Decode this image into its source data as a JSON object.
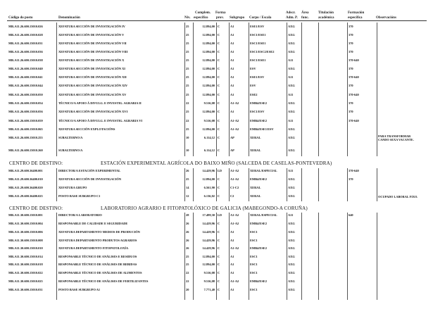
{
  "headers": {
    "codigo": "Código do posto",
    "denominacion": "Denominación",
    "nivel": "Niv.",
    "complem": "Complem.",
    "complem2": "específico",
    "forma": "Forma",
    "forma2": "prov.",
    "subgrupo": "Subgrupo",
    "corpo": "Corpo / Escala",
    "adscr": "Adscr.",
    "adscr2": "Adm. P.",
    "area": "Área",
    "area2": "func.",
    "titulacion": "Titulación",
    "titulacion2": "académica",
    "formacion": "Formación",
    "formacion2": "específica",
    "observacions": "Observacións"
  },
  "sections": [
    {
      "centro_label": "",
      "centro_name": "",
      "rows": [
        {
          "code": "MR.A11.26.600.15010.026",
          "name": "XEFATURA SECCIÓN DE INVESTIGACIÓN IV",
          "nivel": "25",
          "complem": "12.894,00",
          "forma": "C",
          "subgrupo": "A1",
          "corpo": "ESE1/ESV",
          "adscr": "AXG",
          "area": "",
          "titulacion": "",
          "formacion": "370",
          "obs": ""
        },
        {
          "code": "MR.A11.26.600.15010.028",
          "name": "XEFATURA SECCIÓN DE INVESTIGACIÓN V",
          "nivel": "25",
          "complem": "12.894,00",
          "forma": "C",
          "subgrupo": "A1",
          "corpo": "ESC1/ESE1",
          "adscr": "AXG",
          "area": "",
          "titulacion": "",
          "formacion": "370",
          "obs": ""
        },
        {
          "code": "MR.A11.26.600.15010.031",
          "name": "XEFATURA SECCIÓN DE INVESTIGACIÓN VII",
          "nivel": "25",
          "complem": "12.894,00",
          "forma": "C",
          "subgrupo": "A1",
          "corpo": "ESC1/ESE1",
          "adscr": "AXG",
          "area": "",
          "titulacion": "",
          "formacion": "370",
          "obs": ""
        },
        {
          "code": "MR.A11.26.600.15010.036",
          "name": "XEFATURA SECCIÓN DE INVESTIGACIÓN VIII",
          "nivel": "25",
          "complem": "12.894,00",
          "forma": "C",
          "subgrupo": "A1",
          "corpo": "ESC1/ESC2/ESE2",
          "adscr": "AXG",
          "area": "",
          "titulacion": "",
          "formacion": "370",
          "obs": ""
        },
        {
          "code": "MR.A11.26.600.15010.038",
          "name": "XEFATURA SECCIÓN DE INVESTIGACIÓN X",
          "nivel": "25",
          "complem": "12.894,00",
          "forma": "C",
          "subgrupo": "A1",
          "corpo": "ESC1/ESE1",
          "adscr": "A11",
          "area": "",
          "titulacion": "",
          "formacion": "370-640",
          "obs": ""
        },
        {
          "code": "MR.A11.26.600.15010.040",
          "name": "XEFATURA SECCIÓN DE INVESTIGACIÓN XI",
          "nivel": "25",
          "complem": "12.894,00",
          "forma": "C",
          "subgrupo": "A1",
          "corpo": "ESV",
          "adscr": "AXG",
          "area": "",
          "titulacion": "",
          "formacion": "370",
          "obs": ""
        },
        {
          "code": "MR.A11.26.600.15010.041",
          "name": "XEFATURA SECCIÓN DE INVESTIGACIÓN XII",
          "nivel": "25",
          "complem": "12.894,00",
          "forma": "C",
          "subgrupo": "A1",
          "corpo": "ESE1/ESV",
          "adscr": "A11",
          "area": "",
          "titulacion": "",
          "formacion": "370-640",
          "obs": ""
        },
        {
          "code": "MR.A11.26.600.15010.044",
          "name": "XEFATURA SECCIÓN DE INVESTIGACIÓN XIV",
          "nivel": "25",
          "complem": "12.894,00",
          "forma": "C",
          "subgrupo": "A1",
          "corpo": "ESV",
          "adscr": "AXG",
          "area": "",
          "titulacion": "",
          "formacion": "370",
          "obs": ""
        },
        {
          "code": "MR.A11.26.600.15010.050",
          "name": "XEFATURA SECCIÓN DE INVESTIGACIÓN XV",
          "nivel": "25",
          "complem": "12.894,00",
          "forma": "C",
          "subgrupo": "A1",
          "corpo": "ESE2",
          "adscr": "A11",
          "area": "",
          "titulacion": "",
          "formacion": "370-640",
          "obs": ""
        },
        {
          "code": "MR.A11.26.600.15010.054",
          "name": "TÉCNICO/A APOIO Á DIVULG. E INVESTIG. AGRARIA II",
          "nivel": "22",
          "complem": "9.516,08",
          "forma": "C",
          "subgrupo": "A1-A2",
          "corpo": "EMB4/ESE2",
          "adscr": "AXG",
          "area": "",
          "titulacion": "",
          "formacion": "370",
          "obs": ""
        },
        {
          "code": "MR.A11.26.600.15010.056",
          "name": "XEFATURA SECCIÓN DE INVESTIGACIÓN XVI",
          "nivel": "25",
          "complem": "12.894,00",
          "forma": "C",
          "subgrupo": "A1",
          "corpo": "ESC1/ESV",
          "adscr": "AXG",
          "area": "",
          "titulacion": "",
          "formacion": "370",
          "obs": ""
        },
        {
          "code": "MR.A11.26.600.15010.059",
          "name": "TÉCNICO/A APOIO Á DIVULG. E INVESTIG. AGRARIA VI",
          "nivel": "22",
          "complem": "9.516,08",
          "forma": "C",
          "subgrupo": "A1-A2",
          "corpo": "EMB4/ESE2",
          "adscr": "A11",
          "area": "",
          "titulacion": "",
          "formacion": "370-640",
          "obs": ""
        },
        {
          "code": "MR.A11.26.600.15010.065",
          "name": "XEFATURA SECCIÓN EXPLOTACIÓNS",
          "nivel": "25",
          "complem": "12.894,00",
          "forma": "C",
          "subgrupo": "A1-A2",
          "corpo": "EMB4/ESE1/ESV",
          "adscr": "AXG",
          "area": "",
          "titulacion": "",
          "formacion": "",
          "obs": ""
        },
        {
          "code": "MR.A11.26.600.15010.255",
          "name": "SUBALTERNO/A",
          "nivel": "10",
          "complem": "6.114,12",
          "forma": "C",
          "subgrupo": "AP",
          "corpo": "XERAL",
          "adscr": "AXG",
          "area": "",
          "titulacion": "",
          "formacion": "",
          "obs": "PARA TRANSFORMAR\nCANDO SEXA VACANTE."
        },
        {
          "code": "MR.A11.26.600.15010.260",
          "name": "SUBALTERNO/A",
          "nivel": "10",
          "complem": "6.114,12",
          "forma": "C",
          "subgrupo": "AP",
          "corpo": "XERAL",
          "adscr": "AXG",
          "area": "",
          "titulacion": "",
          "formacion": "",
          "obs": ""
        }
      ]
    },
    {
      "centro_label": "CENTRO DE DESTINO:",
      "centro_name": "ESTACIÓN EXPERIMENTAL AGRÍCOLA DO BAIXO MIÑO (SALCEDA DE CASELAS-PONTEVEDRA)",
      "rows": [
        {
          "code": "MR.A11.29.600.36400.001",
          "name": "DIRECTOR/A ESTACIÓN EXPERIMENTAL",
          "nivel": "26",
          "complem": "14.429,96",
          "forma": "LD",
          "subgrupo": "A1-A2",
          "corpo": "XERAL/ESPECIAL",
          "adscr": "A11",
          "area": "",
          "titulacion": "",
          "formacion": "370-640",
          "obs": ""
        },
        {
          "code": "MR.A11.29.600.36400.010",
          "name": "XEFATURA SECCIÓN DE INVESTIGACIÓN",
          "nivel": "25",
          "complem": "12.894,00",
          "forma": "C",
          "subgrupo": "A1-A2",
          "corpo": "EMB4/ESE2",
          "adscr": "AXG",
          "area": "",
          "titulacion": "",
          "formacion": "370",
          "obs": ""
        },
        {
          "code": "MR.A11.29.600.36400.020",
          "name": "XEFATURA GRUPO",
          "nivel": "14",
          "complem": "6.561,90",
          "forma": "C",
          "subgrupo": "C1-C2",
          "corpo": "XERAL",
          "adscr": "AXG",
          "area": "",
          "titulacion": "",
          "formacion": "",
          "obs": ""
        },
        {
          "code": "MR.A11.29.600.36400.025",
          "name": "POSTO BASE SUBGRUPO C1",
          "nivel": "12",
          "complem": "6.136,02",
          "forma": "C",
          "subgrupo": "C2",
          "corpo": "XERAL",
          "adscr": "AXG",
          "area": "",
          "titulacion": "",
          "formacion": "",
          "obs": "OCUPADO LABORAL FIXO."
        }
      ]
    },
    {
      "centro_label": "CENTRO DE DESTINO:",
      "centro_name": "LABORATORIO AGRARIO E FITOPATOLÓXICO DE GALICIA (MABEGONDO-A CORUÑA)",
      "rows": [
        {
          "code": "MR.A11.30.600.15010.001",
          "name": "DIRECTOR/A LABORATORIO",
          "nivel": "28",
          "complem": "17.499,30",
          "forma": "LD",
          "subgrupo": "A1-A2",
          "corpo": "XERAL/ESPECIAL",
          "adscr": "A11",
          "area": "",
          "titulacion": "",
          "formacion": "640",
          "obs": ""
        },
        {
          "code": "MR.A11.30.600.15010.004",
          "name": "RESPONSABLE DE CALIDADE E SEGURIDADE",
          "nivel": "26",
          "complem": "14.429,96",
          "forma": "C",
          "subgrupo": "A1-A2",
          "corpo": "EMB4/ESE2",
          "adscr": "AXG",
          "area": "",
          "titulacion": "",
          "formacion": "",
          "obs": ""
        },
        {
          "code": "MR.A11.30.600.15010.006",
          "name": "XEFATURA DEPARTAMENTO MEDIOS DE PRODUCIÓN",
          "nivel": "26",
          "complem": "14.429,96",
          "forma": "C",
          "subgrupo": "A1",
          "corpo": "ESC1",
          "adscr": "AXG",
          "area": "",
          "titulacion": "",
          "formacion": "",
          "obs": ""
        },
        {
          "code": "MR.A11.30.600.15010.008",
          "name": "XEFATURA DEPARTAMENTO PRODUTOS AGRARIOS",
          "nivel": "26",
          "complem": "14.429,96",
          "forma": "C",
          "subgrupo": "A1",
          "corpo": "ESC1",
          "adscr": "AXG",
          "area": "",
          "titulacion": "",
          "formacion": "",
          "obs": ""
        },
        {
          "code": "MR.A11.30.600.15010.010",
          "name": "XEFATURA DEPARTAMENTO FITOPATOLOXÍA",
          "nivel": "26",
          "complem": "14.429,96",
          "forma": "C",
          "subgrupo": "A1-A2",
          "corpo": "EMB4/ESE2",
          "adscr": "AXG",
          "area": "",
          "titulacion": "",
          "formacion": "",
          "obs": ""
        },
        {
          "code": "MR.A11.30.600.15010.014",
          "name": "RESPONSABLE TÉCNICO DE ANÁLISES E RESIDUOS",
          "nivel": "25",
          "complem": "12.894,00",
          "forma": "C",
          "subgrupo": "A1",
          "corpo": "ESC1",
          "adscr": "AXG",
          "area": "",
          "titulacion": "",
          "formacion": "",
          "obs": ""
        },
        {
          "code": "MR.A11.30.600.15010.018",
          "name": "RESPONSABLE TÉCNICO DE ANÁLISES DE BEBIDAS",
          "nivel": "25",
          "complem": "12.894,00",
          "forma": "C",
          "subgrupo": "A1",
          "corpo": "ESC1",
          "adscr": "AXG",
          "area": "",
          "titulacion": "",
          "formacion": "",
          "obs": ""
        },
        {
          "code": "MR.A11.30.600.15010.022",
          "name": "RESPONSABLE TÉCNICO DE ANÁLISES DE ALIMENTOS",
          "nivel": "22",
          "complem": "9.516,08",
          "forma": "C",
          "subgrupo": "A1",
          "corpo": "ESC1",
          "adscr": "AXG",
          "area": "",
          "titulacion": "",
          "formacion": "",
          "obs": ""
        },
        {
          "code": "MR.A11.30.600.15010.025",
          "name": "RESPONSABLE TÉCNICO DE ANÁLISES DE FERTILIZANTES",
          "nivel": "22",
          "complem": "9.516,08",
          "forma": "C",
          "subgrupo": "A1-A2",
          "corpo": "EMB4/ESE2",
          "adscr": "AXG",
          "area": "",
          "titulacion": "",
          "formacion": "",
          "obs": ""
        },
        {
          "code": "MR.A11.30.600.15010.031",
          "name": "POSTO BASE SUBGRUPO A1",
          "nivel": "20",
          "complem": "7.771,40",
          "forma": "C",
          "subgrupo": "A1",
          "corpo": "ESC1",
          "adscr": "AXG",
          "area": "",
          "titulacion": "",
          "formacion": "",
          "obs": ""
        }
      ]
    }
  ]
}
